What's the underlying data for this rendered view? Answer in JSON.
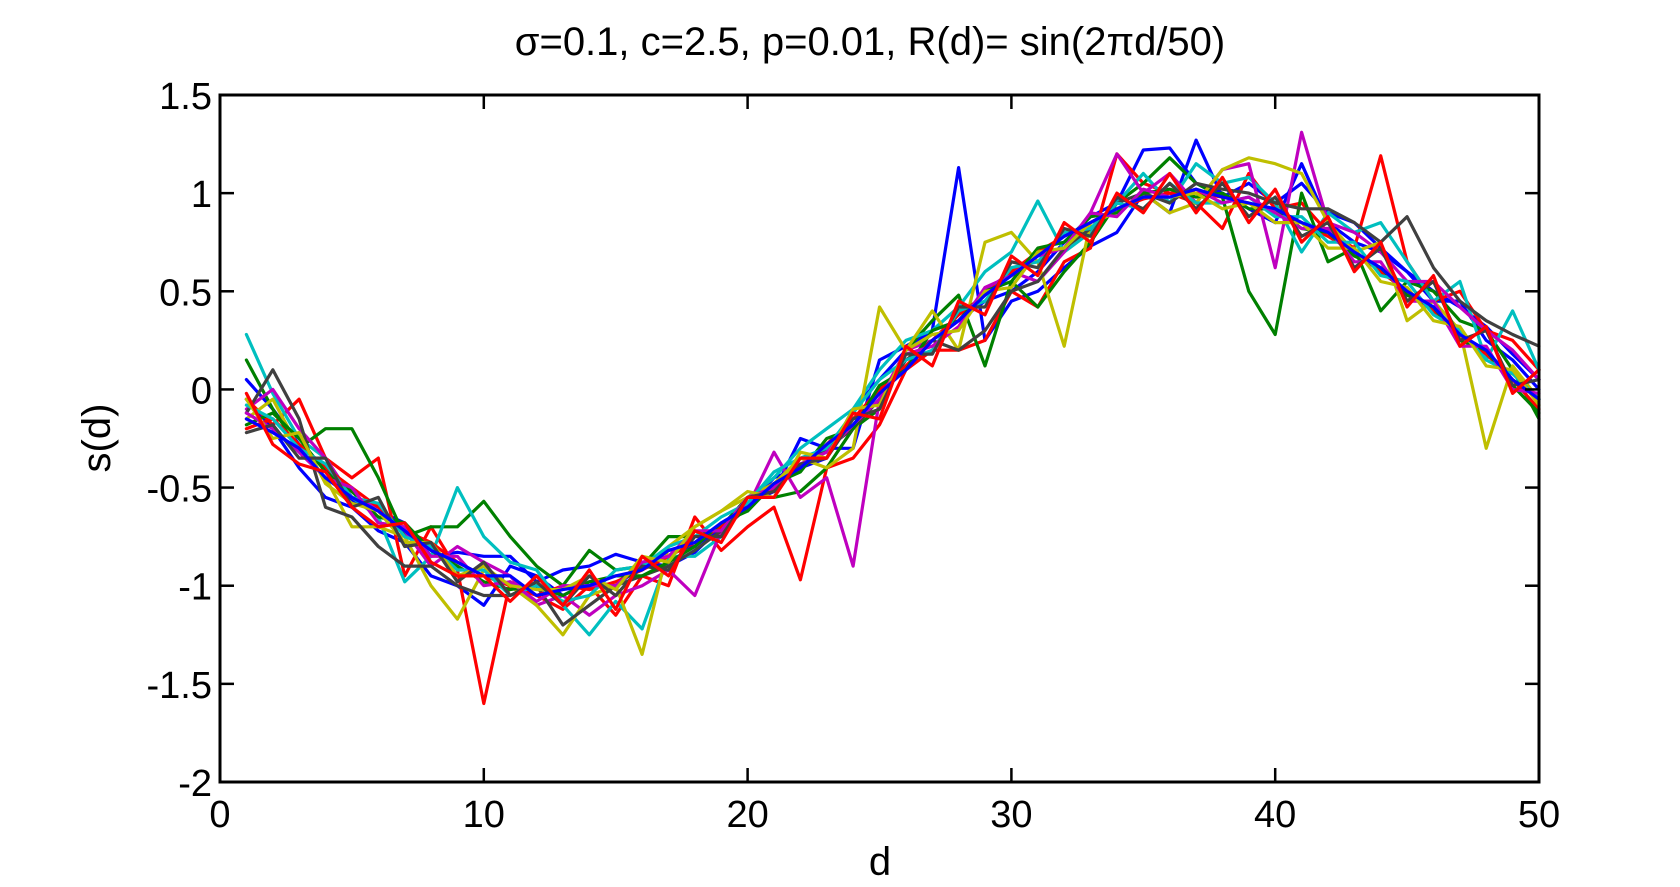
{
  "chart_data": {
    "type": "line",
    "title": "σ=0.1, c=2.5, p=0.01, R(d)= sin(2πd/50)",
    "xlabel": "d",
    "ylabel": "s(d)",
    "xlim": [
      0,
      50
    ],
    "ylim": [
      -2,
      1.5
    ],
    "xticks": [
      0,
      10,
      20,
      30,
      40,
      50
    ],
    "yticks": [
      -2,
      -1.5,
      -1,
      -0.5,
      0,
      0.5,
      1,
      1.5
    ],
    "xtick_labels": [
      "0",
      "10",
      "20",
      "30",
      "40",
      "50"
    ],
    "ytick_labels": [
      "-2",
      "-1.5",
      "-1",
      "-0.5",
      "0",
      "0.5",
      "1",
      "1.5"
    ],
    "grid": false,
    "legend": "none",
    "x": [
      1,
      2,
      3,
      4,
      5,
      6,
      7,
      8,
      9,
      10,
      11,
      12,
      13,
      14,
      15,
      16,
      17,
      18,
      19,
      20,
      21,
      22,
      23,
      24,
      25,
      26,
      27,
      28,
      29,
      30,
      31,
      32,
      33,
      34,
      35,
      36,
      37,
      38,
      39,
      40,
      41,
      42,
      43,
      44,
      45,
      46,
      47,
      48,
      49,
      50
    ],
    "series": [
      {
        "color": "#0000ff",
        "values": [
          0.05,
          -0.1,
          -0.28,
          -0.4,
          -0.57,
          -0.62,
          -0.68,
          -0.85,
          -0.83,
          -0.85,
          -0.85,
          -0.98,
          -0.92,
          -0.9,
          -0.84,
          -0.88,
          -0.9,
          -0.83,
          -0.7,
          -0.58,
          -0.52,
          -0.25,
          -0.3,
          -0.3,
          0.15,
          0.22,
          0.3,
          1.13,
          0.25,
          0.45,
          0.5,
          0.62,
          0.73,
          0.8,
          1.0,
          0.9,
          1.27,
          0.98,
          1.05,
          0.95,
          1.05,
          0.9,
          0.85,
          0.72,
          0.6,
          0.45,
          0.45,
          0.25,
          0.15,
          0.0
        ]
      },
      {
        "color": "#0000ff",
        "values": [
          -0.05,
          -0.2,
          -0.4,
          -0.55,
          -0.6,
          -0.72,
          -0.78,
          -0.95,
          -1.0,
          -1.1,
          -0.9,
          -0.95,
          -1.05,
          -0.98,
          -1.0,
          -0.9,
          -0.82,
          -0.8,
          -0.7,
          -0.6,
          -0.45,
          -0.4,
          -0.35,
          -0.1,
          0.05,
          0.2,
          0.3,
          0.35,
          0.45,
          0.5,
          0.6,
          0.75,
          0.88,
          0.95,
          1.22,
          1.23,
          1.05,
          1.0,
          0.92,
          0.85,
          1.15,
          0.85,
          0.75,
          0.7,
          0.6,
          0.5,
          0.42,
          0.32,
          0.18,
          0.05
        ]
      },
      {
        "color": "#ff0000",
        "values": [
          -0.05,
          -0.18,
          -0.05,
          -0.35,
          -0.45,
          -0.35,
          -0.95,
          -0.7,
          -0.92,
          -1.6,
          -0.98,
          -1.05,
          -1.12,
          -1.0,
          -1.15,
          -0.95,
          -1.0,
          -0.65,
          -0.82,
          -0.7,
          -0.6,
          -0.97,
          -0.4,
          -0.35,
          -0.18,
          0.1,
          0.2,
          0.2,
          0.25,
          0.5,
          0.42,
          0.65,
          0.72,
          1.2,
          1.05,
          1.0,
          0.95,
          0.82,
          1.1,
          0.92,
          0.95,
          0.8,
          0.72,
          1.19,
          0.65,
          0.45,
          0.5,
          0.3,
          0.25,
          0.1
        ]
      },
      {
        "color": "#008000",
        "values": [
          0.15,
          -0.1,
          -0.3,
          -0.2,
          -0.2,
          -0.45,
          -0.75,
          -0.7,
          -0.7,
          -0.57,
          -0.75,
          -0.9,
          -1.0,
          -0.82,
          -0.92,
          -0.9,
          -0.75,
          -0.75,
          -0.7,
          -0.55,
          -0.55,
          -0.52,
          -0.4,
          -0.2,
          -0.1,
          0.2,
          0.35,
          0.48,
          0.12,
          0.55,
          0.42,
          0.6,
          0.75,
          0.95,
          1.05,
          1.18,
          1.05,
          0.98,
          0.5,
          0.28,
          1.0,
          0.65,
          0.72,
          0.4,
          0.55,
          0.5,
          0.35,
          0.3,
          0.1,
          -0.15
        ]
      },
      {
        "color": "#00bfbf",
        "values": [
          0.28,
          -0.02,
          -0.25,
          -0.35,
          -0.55,
          -0.65,
          -0.98,
          -0.85,
          -0.5,
          -0.75,
          -0.88,
          -0.92,
          -1.1,
          -1.25,
          -1.08,
          -1.22,
          -0.85,
          -0.85,
          -0.75,
          -0.55,
          -0.45,
          -0.3,
          -0.2,
          -0.1,
          0.1,
          0.25,
          0.3,
          0.42,
          0.6,
          0.7,
          0.96,
          0.7,
          0.8,
          0.95,
          1.1,
          0.95,
          1.15,
          1.05,
          1.08,
          0.95,
          0.7,
          0.9,
          0.8,
          0.85,
          0.65,
          0.45,
          0.55,
          0.15,
          0.4,
          0.1
        ]
      },
      {
        "color": "#bf00bf",
        "values": [
          -0.1,
          0.0,
          -0.2,
          -0.35,
          -0.55,
          -0.6,
          -0.72,
          -0.9,
          -0.8,
          -0.88,
          -0.95,
          -1.1,
          -1.05,
          -1.15,
          -1.05,
          -1.0,
          -0.92,
          -1.05,
          -0.72,
          -0.6,
          -0.32,
          -0.55,
          -0.45,
          -0.9,
          -0.05,
          0.2,
          0.25,
          0.35,
          0.5,
          0.6,
          0.55,
          0.7,
          0.9,
          1.2,
          1.0,
          1.1,
          0.95,
          1.12,
          1.15,
          0.62,
          1.31,
          0.85,
          0.8,
          0.7,
          0.55,
          0.55,
          0.42,
          0.3,
          0.2,
          0.05
        ]
      },
      {
        "color": "#bfbf00",
        "values": [
          -0.15,
          -0.05,
          -0.3,
          -0.45,
          -0.7,
          -0.7,
          -0.75,
          -1.0,
          -1.17,
          -0.92,
          -1.0,
          -1.1,
          -1.25,
          -1.05,
          -1.0,
          -1.35,
          -0.8,
          -0.7,
          -0.62,
          -0.55,
          -0.48,
          -0.35,
          -0.4,
          -0.3,
          0.42,
          0.2,
          0.4,
          0.2,
          0.75,
          0.8,
          0.65,
          0.22,
          0.85,
          0.9,
          1.0,
          0.9,
          0.95,
          1.12,
          1.18,
          1.15,
          1.1,
          0.85,
          0.7,
          0.75,
          0.35,
          0.45,
          0.3,
          -0.3,
          0.12,
          -0.05
        ]
      },
      {
        "color": "#404040",
        "values": [
          -0.12,
          0.1,
          -0.15,
          -0.6,
          -0.65,
          -0.8,
          -0.9,
          -0.9,
          -1.0,
          -1.05,
          -1.05,
          -1.0,
          -1.2,
          -1.1,
          -1.0,
          -0.95,
          -0.9,
          -0.82,
          -0.72,
          -0.6,
          -0.5,
          -0.4,
          -0.3,
          -0.2,
          -0.05,
          0.15,
          0.25,
          0.2,
          0.3,
          0.5,
          0.55,
          0.72,
          0.82,
          0.95,
          1.0,
          0.95,
          1.05,
          1.02,
          1.0,
          0.95,
          0.92,
          0.92,
          0.85,
          0.75,
          0.88,
          0.62,
          0.45,
          0.35,
          0.28,
          0.22
        ]
      },
      {
        "color": "#ff0000",
        "values": [
          -0.2,
          -0.15,
          -0.28,
          -0.4,
          -0.5,
          -0.6,
          -0.72,
          -0.78,
          -0.88,
          -0.95,
          -1.0,
          -1.05,
          -1.0,
          -1.02,
          -0.98,
          -0.92,
          -0.85,
          -0.78,
          -0.7,
          -0.6,
          -0.5,
          -0.4,
          -0.28,
          -0.15,
          0.0,
          0.12,
          0.25,
          0.38,
          0.48,
          0.6,
          0.7,
          0.78,
          0.85,
          0.92,
          0.97,
          1.0,
          1.0,
          0.98,
          0.95,
          0.9,
          0.85,
          0.78,
          0.7,
          0.6,
          0.5,
          0.4,
          0.28,
          0.18,
          0.05,
          -0.1
        ]
      },
      {
        "color": "#008000",
        "values": [
          -0.18,
          -0.12,
          -0.25,
          -0.42,
          -0.52,
          -0.65,
          -0.68,
          -0.82,
          -0.9,
          -0.98,
          -1.02,
          -1.0,
          -1.05,
          -0.98,
          -0.95,
          -0.95,
          -0.88,
          -0.8,
          -0.68,
          -0.62,
          -0.48,
          -0.42,
          -0.25,
          -0.2,
          0.02,
          0.1,
          0.3,
          0.35,
          0.5,
          0.55,
          0.72,
          0.75,
          0.88,
          0.9,
          1.0,
          1.02,
          0.98,
          1.0,
          0.92,
          0.92,
          0.82,
          0.8,
          0.68,
          0.62,
          0.48,
          0.42,
          0.25,
          0.2,
          0.02,
          -0.12
        ]
      },
      {
        "color": "#00bfbf",
        "values": [
          -0.08,
          -0.15,
          -0.3,
          -0.38,
          -0.55,
          -0.58,
          -0.75,
          -0.8,
          -0.92,
          -0.92,
          -1.05,
          -1.0,
          -1.08,
          -1.05,
          -0.92,
          -0.9,
          -0.8,
          -0.75,
          -0.65,
          -0.58,
          -0.42,
          -0.35,
          -0.3,
          -0.12,
          0.05,
          0.15,
          0.2,
          0.4,
          0.45,
          0.62,
          0.65,
          0.8,
          0.82,
          0.95,
          0.92,
          1.05,
          0.95,
          0.95,
          0.98,
          0.88,
          0.88,
          0.75,
          0.75,
          0.58,
          0.55,
          0.38,
          0.3,
          0.15,
          0.08,
          -0.05
        ]
      },
      {
        "color": "#bf00bf",
        "values": [
          -0.12,
          -0.2,
          -0.32,
          -0.45,
          -0.5,
          -0.68,
          -0.7,
          -0.85,
          -0.85,
          -1.0,
          -0.98,
          -1.08,
          -1.0,
          -1.0,
          -1.0,
          -0.88,
          -0.85,
          -0.72,
          -0.72,
          -0.55,
          -0.5,
          -0.38,
          -0.32,
          -0.18,
          -0.05,
          0.18,
          0.22,
          0.32,
          0.52,
          0.58,
          0.68,
          0.72,
          0.9,
          0.88,
          1.02,
          0.98,
          1.02,
          0.95,
          0.98,
          0.9,
          0.82,
          0.82,
          0.65,
          0.65,
          0.45,
          0.45,
          0.22,
          0.22,
          0.0,
          -0.02
        ]
      },
      {
        "color": "#bfbf00",
        "values": [
          -0.05,
          -0.25,
          -0.22,
          -0.48,
          -0.58,
          -0.62,
          -0.78,
          -0.78,
          -0.95,
          -0.9,
          -1.0,
          -1.02,
          -1.02,
          -0.95,
          -1.02,
          -0.85,
          -0.88,
          -0.7,
          -0.62,
          -0.52,
          -0.55,
          -0.32,
          -0.35,
          -0.1,
          -0.08,
          0.2,
          0.28,
          0.3,
          0.5,
          0.52,
          0.7,
          0.72,
          0.85,
          0.92,
          0.98,
          0.98,
          1.0,
          0.92,
          0.95,
          0.85,
          0.85,
          0.72,
          0.72,
          0.55,
          0.52,
          0.35,
          0.32,
          0.12,
          0.1,
          -0.08
        ]
      },
      {
        "color": "#404040",
        "values": [
          -0.22,
          -0.18,
          -0.35,
          -0.35,
          -0.6,
          -0.55,
          -0.8,
          -0.78,
          -0.98,
          -0.88,
          -1.05,
          -0.98,
          -1.1,
          -0.95,
          -1.05,
          -0.9,
          -0.92,
          -0.75,
          -0.75,
          -0.55,
          -0.52,
          -0.38,
          -0.35,
          -0.15,
          -0.1,
          0.18,
          0.18,
          0.42,
          0.42,
          0.65,
          0.62,
          0.82,
          0.78,
          0.98,
          0.92,
          1.05,
          0.92,
          1.05,
          0.88,
          0.98,
          0.78,
          0.85,
          0.62,
          0.72,
          0.45,
          0.55,
          0.25,
          0.3,
          0.02,
          0.05
        ]
      },
      {
        "color": "#0000ff",
        "values": [
          -0.15,
          -0.22,
          -0.3,
          -0.45,
          -0.55,
          -0.62,
          -0.72,
          -0.82,
          -0.88,
          -0.95,
          -0.95,
          -1.05,
          -1.02,
          -1.0,
          -0.95,
          -0.92,
          -0.82,
          -0.78,
          -0.68,
          -0.6,
          -0.48,
          -0.4,
          -0.28,
          -0.18,
          -0.02,
          0.1,
          0.25,
          0.35,
          0.48,
          0.58,
          0.68,
          0.78,
          0.85,
          0.92,
          0.98,
          0.98,
          1.02,
          0.98,
          0.95,
          0.92,
          0.85,
          0.8,
          0.7,
          0.62,
          0.5,
          0.42,
          0.28,
          0.2,
          0.05,
          -0.05
        ]
      },
      {
        "color": "#ff0000",
        "values": [
          -0.02,
          -0.28,
          -0.38,
          -0.42,
          -0.6,
          -0.7,
          -0.68,
          -0.88,
          -0.95,
          -0.95,
          -1.08,
          -0.95,
          -1.1,
          -0.92,
          -1.12,
          -0.85,
          -0.95,
          -0.72,
          -0.78,
          -0.55,
          -0.55,
          -0.35,
          -0.35,
          -0.12,
          -0.15,
          0.22,
          0.12,
          0.45,
          0.38,
          0.68,
          0.58,
          0.85,
          0.75,
          1.0,
          0.9,
          1.1,
          0.9,
          1.08,
          0.85,
          1.02,
          0.75,
          0.88,
          0.6,
          0.75,
          0.42,
          0.58,
          0.22,
          0.32,
          -0.02,
          0.1
        ]
      }
    ]
  }
}
